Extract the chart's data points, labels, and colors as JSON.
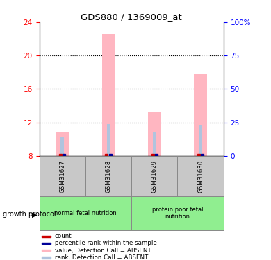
{
  "title": "GDS880 / 1369009_at",
  "samples": [
    "GSM31627",
    "GSM31628",
    "GSM31629",
    "GSM31630"
  ],
  "group1_label": "normal fetal nutrition",
  "group2_label": "protein poor fetal\nnutrition",
  "group_color": "#90EE90",
  "sample_bg_color": "#C8C8C8",
  "ylim_left": [
    8,
    24
  ],
  "ylim_right": [
    0,
    100
  ],
  "yticks_left": [
    8,
    12,
    16,
    20,
    24
  ],
  "yticks_right": [
    0,
    25,
    50,
    75,
    100
  ],
  "ytick_labels_right": [
    "0",
    "25",
    "50",
    "75",
    "100%"
  ],
  "bar_bottom": 8,
  "value_absent": [
    10.8,
    22.6,
    13.3,
    17.8
  ],
  "rank_absent": [
    10.2,
    11.85,
    10.9,
    11.65
  ],
  "count_val": [
    10.8,
    22.6,
    13.3,
    17.8
  ],
  "percentile_rank": [
    10.2,
    11.85,
    10.9,
    11.65
  ],
  "bar_color_value": "#FFB6C1",
  "bar_color_rank": "#B0C4DE",
  "bar_color_count": "#CC0000",
  "bar_color_percentile": "#000099",
  "group_label": "growth protocol",
  "legend_items": [
    {
      "label": "count",
      "color": "#CC0000"
    },
    {
      "label": "percentile rank within the sample",
      "color": "#000099"
    },
    {
      "label": "value, Detection Call = ABSENT",
      "color": "#FFB6C1"
    },
    {
      "label": "rank, Detection Call = ABSENT",
      "color": "#B0C4DE"
    }
  ]
}
